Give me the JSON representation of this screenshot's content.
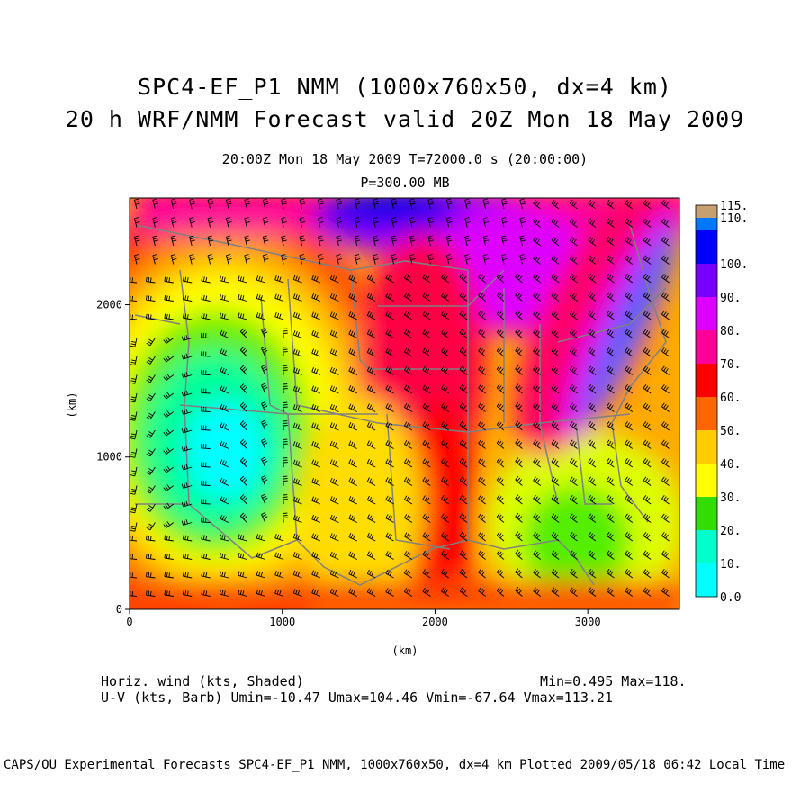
{
  "title": {
    "line1": "SPC4-EF_P1 NMM (1000x760x50, dx=4 km)",
    "line2": "20 h WRF/NMM Forecast valid 20Z Mon 18 May 2009"
  },
  "subtitle": {
    "time": "20:00Z Mon 18 May 2009    T=72000.0 s (20:00:00)",
    "level": "P=300.00 MB"
  },
  "axes": {
    "xlabel": "(km)",
    "ylabel": "(km)",
    "xticks": [
      {
        "value": 0,
        "label": "0"
      },
      {
        "value": 1000,
        "label": "1000"
      },
      {
        "value": 2000,
        "label": "2000"
      },
      {
        "value": 3000,
        "label": "3000"
      }
    ],
    "yticks": [
      {
        "value": 0,
        "label": "0"
      },
      {
        "value": 1000,
        "label": "1000"
      },
      {
        "value": 2000,
        "label": "2000"
      }
    ],
    "xlim": [
      0,
      3600
    ],
    "ylim": [
      0,
      2700
    ]
  },
  "colorbar": {
    "levels": [
      {
        "label": "0.0",
        "color": "#00ffff"
      },
      {
        "label": "10.",
        "color": "#00ffcc"
      },
      {
        "label": "20.",
        "color": "#33dd00"
      },
      {
        "label": "30.",
        "color": "#ffff00"
      },
      {
        "label": "40.",
        "color": "#ffcc00"
      },
      {
        "label": "50.",
        "color": "#ff6600"
      },
      {
        "label": "60.",
        "color": "#ff0000"
      },
      {
        "label": "70.",
        "color": "#ff0099"
      },
      {
        "label": "80.",
        "color": "#dd00ff"
      },
      {
        "label": "90.",
        "color": "#7700ff"
      },
      {
        "label": "100.",
        "color": "#0000ff"
      },
      {
        "label": "110.",
        "color": "#0077ff"
      },
      {
        "label": "115.",
        "color": "#00ccff"
      }
    ],
    "top_color": "#c8a070"
  },
  "footer": {
    "shaded": "Horiz. wind (kts, Shaded)",
    "minmax": "Min=0.495 Max=118.",
    "barb": "U-V (kts, Barb)   Umin=-10.47 Umax=104.46 Vmin=-67.64 Vmax=113.21"
  },
  "credit": "CAPS/OU Experimental Forecasts  SPC4-EF_P1 NMM, 1000x760x50, dx=4 km  Plotted 2009/05/18 06:42 Local Time"
}
